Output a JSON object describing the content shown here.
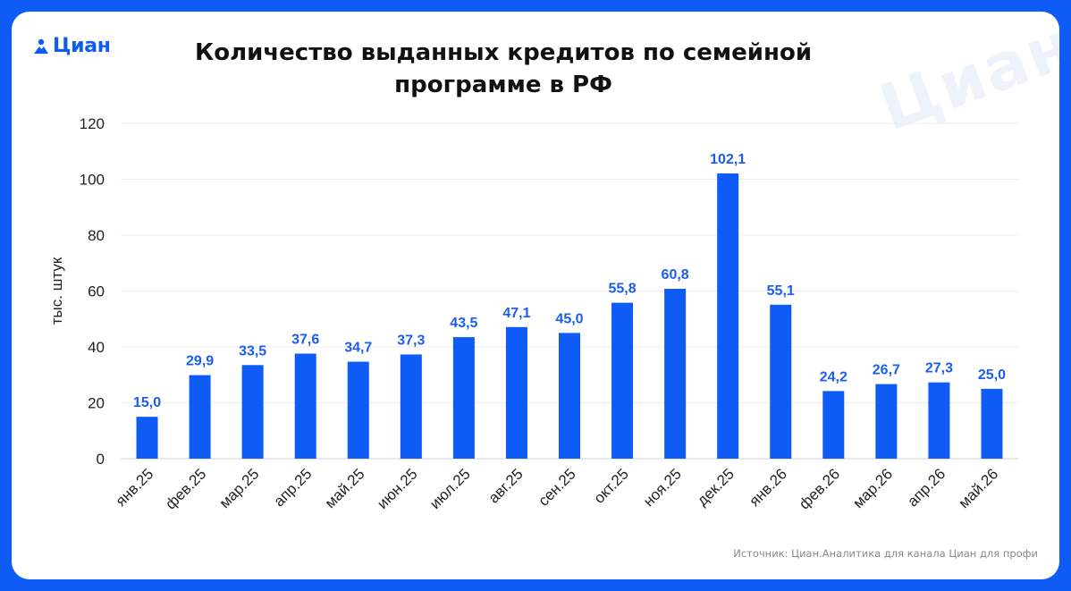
{
  "brand": {
    "name": "Циан",
    "watermark": "Циан"
  },
  "colors": {
    "accent": "#0f5bf5",
    "bar": "#0f5bf5",
    "label": "#1a5df0",
    "background": "#0f5bf5"
  },
  "source": "Источник: Циан.Аналитика для канала Циан для профи",
  "chart_data": {
    "type": "bar",
    "title": "Количество выданных кредитов по семейной программе в РФ",
    "title_lines": [
      "Количество выданных кредитов по семейной",
      "программе в РФ"
    ],
    "ylabel": "тыс. штук",
    "xlabel": "",
    "ylim": [
      0,
      120
    ],
    "yticks": [
      0,
      20,
      40,
      60,
      80,
      100,
      120
    ],
    "grid": true,
    "categories": [
      "янв.25",
      "фев.25",
      "мар.25",
      "апр.25",
      "май.25",
      "июн.25",
      "июл.25",
      "авг.25",
      "сен.25",
      "окт.25",
      "ноя.25",
      "дек.25",
      "янв.26",
      "фев.26",
      "мар.26",
      "апр.26",
      "май.26"
    ],
    "values": [
      15.0,
      29.9,
      33.5,
      37.6,
      34.7,
      37.3,
      43.5,
      47.1,
      45.0,
      55.8,
      60.8,
      102.1,
      55.1,
      24.2,
      26.7,
      27.3,
      25.0
    ],
    "value_labels": [
      "15,0",
      "29,9",
      "33,5",
      "37,6",
      "34,7",
      "37,3",
      "43,5",
      "47,1",
      "45,0",
      "55,8",
      "60,8",
      "102,1",
      "55,1",
      "24,2",
      "26,7",
      "27,3",
      "25,0"
    ]
  }
}
